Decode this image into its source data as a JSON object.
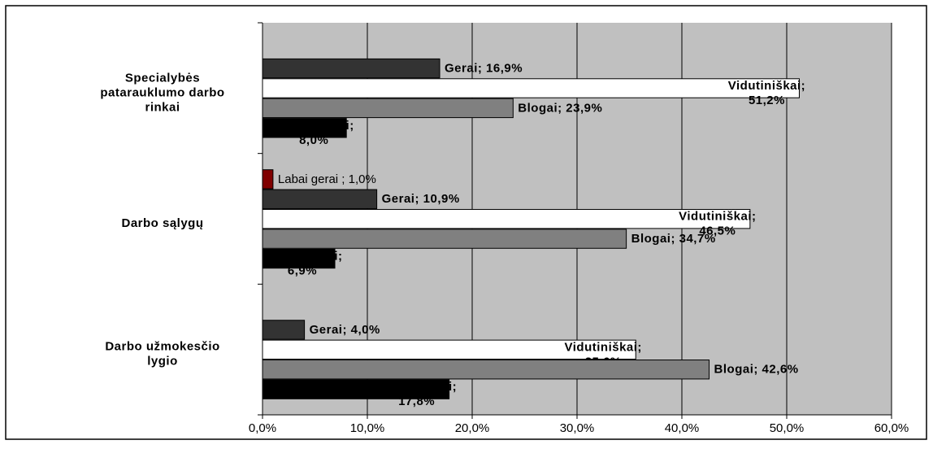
{
  "chart_data": {
    "type": "hbar",
    "categories": [
      "Specialybės\npatarauklumo darbo\nrinkai",
      "Darbo sąlygų",
      "Darbo užmokesčio\nlygio"
    ],
    "series": [
      {
        "color": "#800000",
        "values": [
          null,
          1.0,
          null
        ],
        "value_labels": [
          null,
          "Labai gerai ; 1,0%",
          null
        ]
      },
      {
        "color": "#333333",
        "values": [
          16.9,
          10.9,
          4.0
        ],
        "value_labels": [
          "Gerai; 16,9%",
          "Gerai; 10,9%",
          "Gerai; 4,0%"
        ]
      },
      {
        "color": "#ffffff",
        "values": [
          51.2,
          46.5,
          35.6
        ],
        "value_labels": [
          "Vidutiniškai;\n51,2%",
          "Vidutiniškai;\n46,5%",
          "Vidutiniškai;\n35,6%"
        ]
      },
      {
        "color": "#808080",
        "values": [
          23.9,
          34.7,
          42.6
        ],
        "value_labels": [
          "Blogai; 23,9%",
          "Blogai; 34,7%",
          "Blogai; 42,6%"
        ]
      },
      {
        "color": "#000000",
        "values": [
          8.0,
          6.9,
          17.8
        ],
        "value_labels": [
          "Labai blogai;\n8,0%",
          "Labai blogai;\n6,9%",
          "Labai blogai;\n17,8%"
        ]
      }
    ],
    "xlim": [
      0,
      60
    ],
    "xticks": [
      {
        "value": 0,
        "label": "0,0%"
      },
      {
        "value": 10,
        "label": "10,0%"
      },
      {
        "value": 20,
        "label": "20,0%"
      },
      {
        "value": 30,
        "label": "30,0%"
      },
      {
        "value": 40,
        "label": "40,0%"
      },
      {
        "value": 50,
        "label": "50,0%"
      },
      {
        "value": 60,
        "label": "60,0%"
      }
    ],
    "grid": true
  }
}
